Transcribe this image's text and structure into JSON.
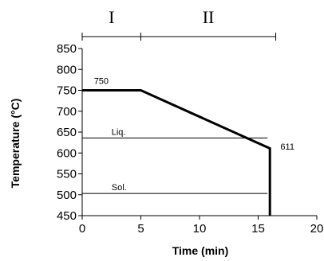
{
  "chart_data": {
    "type": "line",
    "title": "",
    "xlabel": "Time (min)",
    "ylabel": "Temperature (°C)",
    "xlim": [
      0,
      20
    ],
    "ylim": [
      450,
      850
    ],
    "x_ticks": [
      0,
      5,
      10,
      15,
      20
    ],
    "y_ticks": [
      450,
      500,
      550,
      600,
      650,
      700,
      750,
      800,
      850
    ],
    "grid": false,
    "legend": "none",
    "series": [
      {
        "points": [
          {
            "x": 0,
            "y": 750
          },
          {
            "x": 5,
            "y": 750
          },
          {
            "x": 16,
            "y": 611
          },
          {
            "x": 16,
            "y": 450
          }
        ]
      }
    ],
    "reference_lines": [
      {
        "label": "Liq.",
        "y": 636
      },
      {
        "label": "Sol.",
        "y": 503
      }
    ],
    "annotations": [
      {
        "text": "750",
        "x": 1,
        "y": 765
      },
      {
        "text": "611",
        "x": 16.9,
        "y": 608
      }
    ],
    "phases": [
      {
        "label": "I",
        "x_start": 0,
        "x_end": 5
      },
      {
        "label": "II",
        "x_start": 5,
        "x_end": 16.5
      }
    ]
  }
}
